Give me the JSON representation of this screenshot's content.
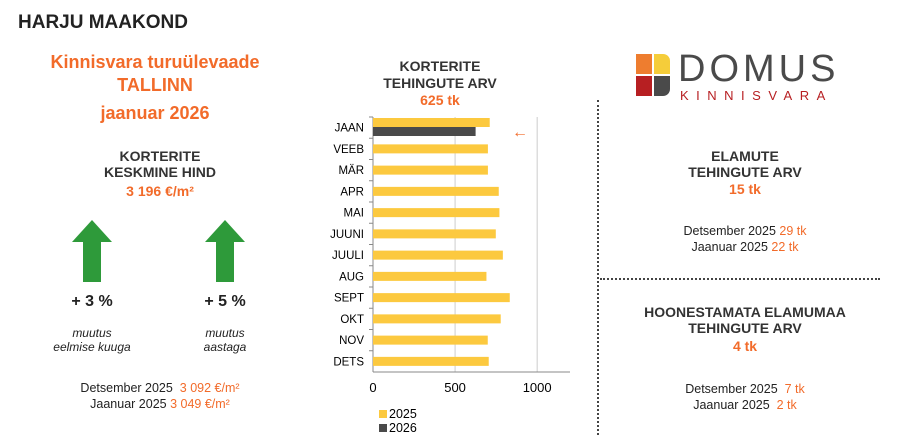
{
  "header": {
    "region": "HARJU MAAKOND",
    "title": "Kinnisvara turuülevaade",
    "city": "TALLINN",
    "period": "jaanuar 2026"
  },
  "price": {
    "title1": "KORTERITE",
    "title2": "KESKMINE HIND",
    "value": "3 196 €/m²",
    "change_month": "+ 3 %",
    "change_month_label1": "muutus",
    "change_month_label2": "eelmise kuuga",
    "change_year": "+ 5 %",
    "change_year_label1": "muutus",
    "change_year_label2": "aastaga",
    "ref1_label": "Detsember 2025",
    "ref1_value": "3 092 €/m²",
    "ref2_label": "Jaanuar 2025",
    "ref2_value": "3 049 €/m²"
  },
  "logo": {
    "name": "DOMUS",
    "sub": "KINNISVARA"
  },
  "houses": {
    "title1": "ELAMUTE",
    "title2": "TEHINGUTE ARV",
    "value": "15 tk",
    "ref1_label": "Detsember 2025",
    "ref1_value": "29 tk",
    "ref2_label": "Jaanuar 2025",
    "ref2_value": "22 tk"
  },
  "land": {
    "title1": "HOONESTAMATA ELAMUMAA",
    "title2": "TEHINGUTE ARV",
    "value": "4 tk",
    "ref1_label": "Detsember 2025",
    "ref1_value": "7 tk",
    "ref2_label": "Jaanuar 2025",
    "ref2_value": "2 tk"
  },
  "chart_data": {
    "type": "bar",
    "orientation": "horizontal",
    "title": "KORTERITE TEHINGUTE ARV",
    "subtitle": "625 tk",
    "categories": [
      "JAAN",
      "VEEB",
      "MÄR",
      "APR",
      "MAI",
      "JUUNI",
      "JUULI",
      "AUG",
      "SEPT",
      "OKT",
      "NOV",
      "DETS"
    ],
    "series": [
      {
        "name": "2025",
        "color": "#fcc93f",
        "values": [
          711,
          700,
          700,
          766,
          770,
          748,
          791,
          691,
          833,
          778,
          699,
          705
        ]
      },
      {
        "name": "2026",
        "color": "#4a4a4a",
        "values": [
          625,
          null,
          null,
          null,
          null,
          null,
          null,
          null,
          null,
          null,
          null,
          null
        ]
      }
    ],
    "xlim": [
      0,
      1200
    ],
    "xticks": [
      "0",
      "500",
      "1000"
    ],
    "xtick_values": [
      0,
      500,
      1000
    ],
    "grid": true,
    "legend": "bottom-left",
    "annotation": "←"
  }
}
